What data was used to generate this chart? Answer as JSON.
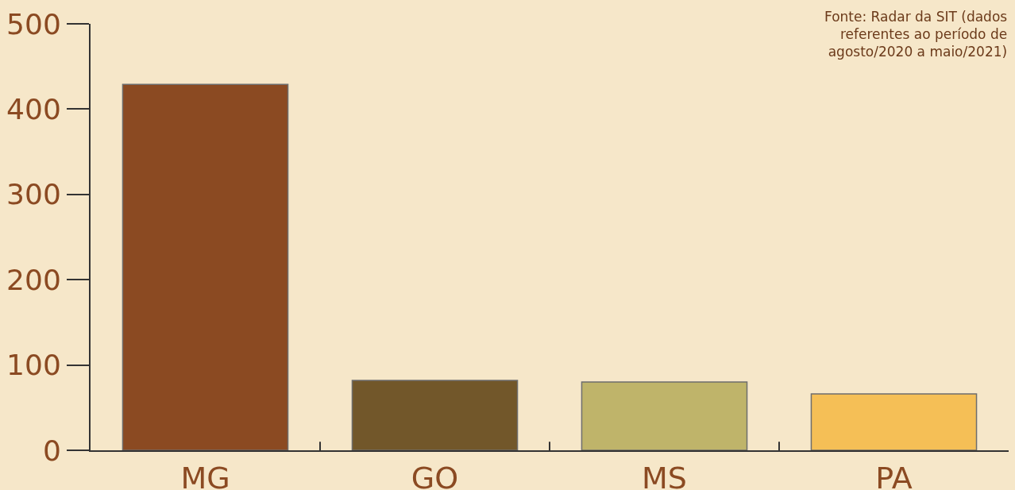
{
  "chart_data": {
    "type": "bar",
    "categories": [
      "MG",
      "GO",
      "MS",
      "PA"
    ],
    "values": [
      429,
      82,
      80,
      66
    ],
    "colors": [
      "#8b4a22",
      "#72572a",
      "#bfb46a",
      "#f5bf56"
    ],
    "ylim": [
      0,
      500
    ],
    "yticks": [
      0,
      100,
      200,
      300,
      400,
      500
    ],
    "grid": false,
    "legend": false,
    "annotations": [
      "Fonte: Radar da SIT (dados\nreferentes ao período de\nagosto/2020 a maio/2021)"
    ]
  }
}
